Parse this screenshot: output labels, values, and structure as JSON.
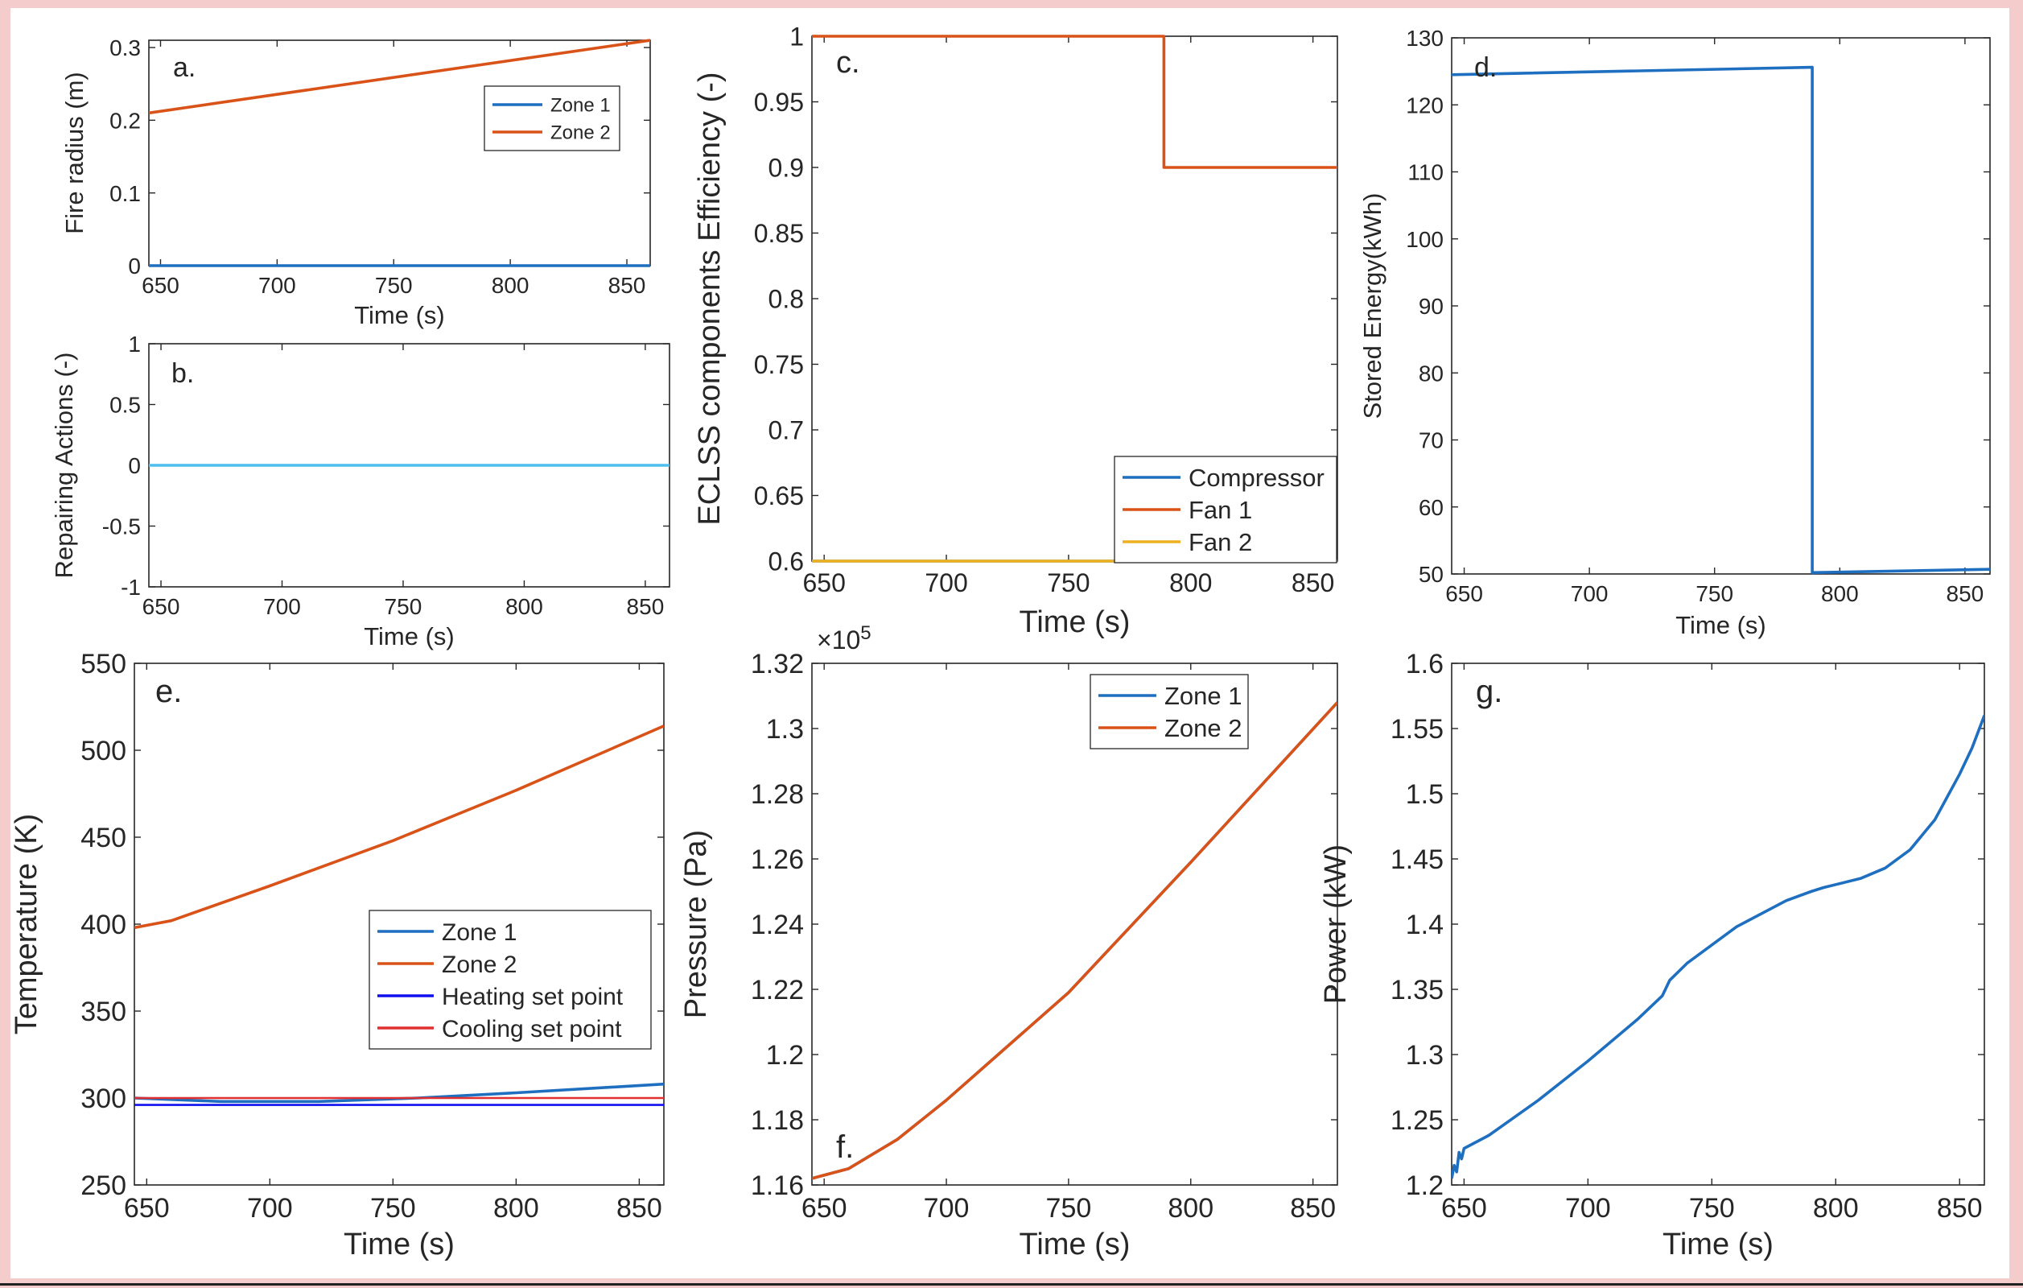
{
  "colors": {
    "blue": "#1f6fc0",
    "orange": "#d95319",
    "yellow": "#edb120",
    "lightblue": "#4dbeee",
    "setblue": "#1010ee",
    "setred": "#e03030",
    "background": "#f4cccc",
    "axis": "#262626"
  },
  "chart_data": [
    {
      "panel": "a.",
      "type": "line",
      "title": "",
      "xlabel": "Time (s)",
      "ylabel": "Fire radius (m)",
      "xlim": [
        645,
        860
      ],
      "ylim": [
        0,
        0.31
      ],
      "xticks": [
        650,
        700,
        750,
        800,
        850
      ],
      "xtick_labels": [
        "650",
        "700",
        "750",
        "800",
        "850"
      ],
      "yticks": [
        0,
        0.1,
        0.2,
        0.3
      ],
      "ytick_labels": [
        "0",
        "0.1",
        "0.2",
        "0.3"
      ],
      "legend": {
        "position": "top-right",
        "entries": [
          "Zone 1",
          "Zone 2"
        ]
      },
      "series": [
        {
          "name": "Zone 1",
          "color": "#1f6fc0",
          "x": [
            645,
            860
          ],
          "y": [
            0,
            0
          ]
        },
        {
          "name": "Zone 2",
          "color": "#d95319",
          "x": [
            645,
            860
          ],
          "y": [
            0.21,
            0.31
          ]
        }
      ]
    },
    {
      "panel": "b.",
      "type": "line",
      "title": "",
      "xlabel": "Time (s)",
      "ylabel": "Repairing Actions (-)",
      "xlim": [
        645,
        860
      ],
      "ylim": [
        -1,
        1
      ],
      "xticks": [
        650,
        700,
        750,
        800,
        850
      ],
      "xtick_labels": [
        "650",
        "700",
        "750",
        "800",
        "850"
      ],
      "yticks": [
        -1,
        -0.5,
        0,
        0.5,
        1
      ],
      "ytick_labels": [
        "-1",
        "-0.5",
        "0",
        "0.5",
        "1"
      ],
      "series": [
        {
          "name": "Repairing Actions",
          "color": "#4dbeee",
          "x": [
            645,
            860
          ],
          "y": [
            0,
            0
          ]
        }
      ]
    },
    {
      "panel": "c.",
      "type": "line",
      "title": "",
      "xlabel": "Time (s)",
      "ylabel": "ECLSS components Efficiency (-)",
      "xlim": [
        645,
        860
      ],
      "ylim": [
        0.6,
        1
      ],
      "xticks": [
        650,
        700,
        750,
        800,
        850
      ],
      "xtick_labels": [
        "650",
        "700",
        "750",
        "800",
        "850"
      ],
      "yticks": [
        0.6,
        0.65,
        0.7,
        0.75,
        0.8,
        0.85,
        0.9,
        0.95,
        1
      ],
      "ytick_labels": [
        "0.6",
        "0.65",
        "0.7",
        "0.75",
        "0.8",
        "0.85",
        "0.9",
        "0.95",
        "1"
      ],
      "legend": {
        "position": "bottom-right",
        "entries": [
          "Compressor",
          "Fan 1",
          "Fan 2"
        ]
      },
      "series": [
        {
          "name": "Compressor",
          "color": "#1f6fc0",
          "x": [
            645,
            860
          ],
          "y": [
            0.6,
            0.6
          ]
        },
        {
          "name": "Fan 1",
          "color": "#d95319",
          "x": [
            645,
            789,
            789,
            860
          ],
          "y": [
            1,
            1,
            0.9,
            0.9
          ]
        },
        {
          "name": "Fan 2",
          "color": "#edb120",
          "x": [
            645,
            860
          ],
          "y": [
            0.6,
            0.6
          ]
        }
      ]
    },
    {
      "panel": "d.",
      "type": "line",
      "title": "",
      "xlabel": "Time (s)",
      "ylabel": "Stored Energy(kWh)",
      "xlim": [
        645,
        860
      ],
      "ylim": [
        50,
        130
      ],
      "xticks": [
        650,
        700,
        750,
        800,
        850
      ],
      "xtick_labels": [
        "650",
        "700",
        "750",
        "800",
        "850"
      ],
      "yticks": [
        50,
        60,
        70,
        80,
        90,
        100,
        110,
        120,
        130
      ],
      "ytick_labels": [
        "50",
        "60",
        "70",
        "80",
        "90",
        "100",
        "110",
        "120",
        "130"
      ],
      "series": [
        {
          "name": "Stored Energy",
          "color": "#1f6fc0",
          "x": [
            645,
            789,
            789,
            860
          ],
          "y": [
            124.5,
            125.6,
            50.2,
            50.7
          ]
        }
      ]
    },
    {
      "panel": "e.",
      "type": "line",
      "title": "",
      "xlabel": "Time (s)",
      "ylabel": "Temperature (K)",
      "xlim": [
        645,
        860
      ],
      "ylim": [
        250,
        550
      ],
      "xticks": [
        650,
        700,
        750,
        800,
        850
      ],
      "xtick_labels": [
        "650",
        "700",
        "750",
        "800",
        "850"
      ],
      "yticks": [
        250,
        300,
        350,
        400,
        450,
        500,
        550
      ],
      "ytick_labels": [
        "250",
        "300",
        "350",
        "400",
        "450",
        "500",
        "550"
      ],
      "legend": {
        "position": "lower-right",
        "entries": [
          "Zone 1",
          "Zone 2",
          "Heating set point",
          "Cooling set point"
        ]
      },
      "series": [
        {
          "name": "Zone 1",
          "color": "#1f6fc0",
          "x": [
            645,
            680,
            720,
            760,
            800,
            860
          ],
          "y": [
            300,
            298,
            298,
            300,
            303,
            308
          ]
        },
        {
          "name": "Zone 2",
          "color": "#d95319",
          "x": [
            645,
            660,
            700,
            750,
            800,
            860
          ],
          "y": [
            398,
            402,
            422,
            448,
            477,
            514
          ]
        },
        {
          "name": "Heating set point",
          "color": "#1010ee",
          "x": [
            645,
            860
          ],
          "y": [
            296,
            296
          ]
        },
        {
          "name": "Cooling set point",
          "color": "#e03030",
          "x": [
            645,
            860
          ],
          "y": [
            300,
            300
          ]
        }
      ]
    },
    {
      "panel": "f.",
      "type": "line",
      "title": "",
      "xlabel": "Time (s)",
      "ylabel": "Pressure (Pa)",
      "axis_multiplier": "×10",
      "axis_exponent": "5",
      "xlim": [
        645,
        860
      ],
      "ylim": [
        1.16,
        1.32
      ],
      "xticks": [
        650,
        700,
        750,
        800,
        850
      ],
      "xtick_labels": [
        "650",
        "700",
        "750",
        "800",
        "850"
      ],
      "yticks": [
        1.16,
        1.18,
        1.2,
        1.22,
        1.24,
        1.26,
        1.28,
        1.3,
        1.32
      ],
      "ytick_labels": [
        "1.16",
        "1.18",
        "1.2",
        "1.22",
        "1.24",
        "1.26",
        "1.28",
        "1.3",
        "1.32"
      ],
      "legend": {
        "position": "top-right",
        "entries": [
          "Zone 1",
          "Zone 2"
        ]
      },
      "series": [
        {
          "name": "Zone 1",
          "color": "#1f6fc0",
          "x": [
            645,
            660,
            680,
            700,
            750,
            800,
            860
          ],
          "y": [
            1.162,
            1.165,
            1.174,
            1.186,
            1.219,
            1.259,
            1.308
          ]
        },
        {
          "name": "Zone 2",
          "color": "#d95319",
          "x": [
            645,
            660,
            680,
            700,
            750,
            800,
            860
          ],
          "y": [
            1.162,
            1.165,
            1.174,
            1.186,
            1.219,
            1.259,
            1.308
          ]
        }
      ]
    },
    {
      "panel": "g.",
      "type": "line",
      "title": "",
      "xlabel": "Time (s)",
      "ylabel": "Power (kW)",
      "xlim": [
        645,
        860
      ],
      "ylim": [
        1.2,
        1.6
      ],
      "xticks": [
        650,
        700,
        750,
        800,
        850
      ],
      "xtick_labels": [
        "650",
        "700",
        "750",
        "800",
        "850"
      ],
      "yticks": [
        1.2,
        1.25,
        1.3,
        1.35,
        1.4,
        1.45,
        1.5,
        1.55,
        1.6
      ],
      "ytick_labels": [
        "1.2",
        "1.25",
        "1.3",
        "1.35",
        "1.4",
        "1.45",
        "1.5",
        "1.55",
        "1.6"
      ],
      "series": [
        {
          "name": "Power",
          "color": "#1f6fc0",
          "x": [
            645,
            646,
            647,
            648,
            649,
            650,
            660,
            680,
            700,
            720,
            730,
            733,
            740,
            760,
            780,
            790,
            795,
            810,
            820,
            830,
            840,
            850,
            855,
            860
          ],
          "y": [
            1.205,
            1.215,
            1.21,
            1.225,
            1.22,
            1.228,
            1.238,
            1.265,
            1.295,
            1.327,
            1.345,
            1.357,
            1.37,
            1.398,
            1.418,
            1.425,
            1.428,
            1.435,
            1.443,
            1.457,
            1.48,
            1.515,
            1.535,
            1.56
          ]
        }
      ]
    }
  ]
}
